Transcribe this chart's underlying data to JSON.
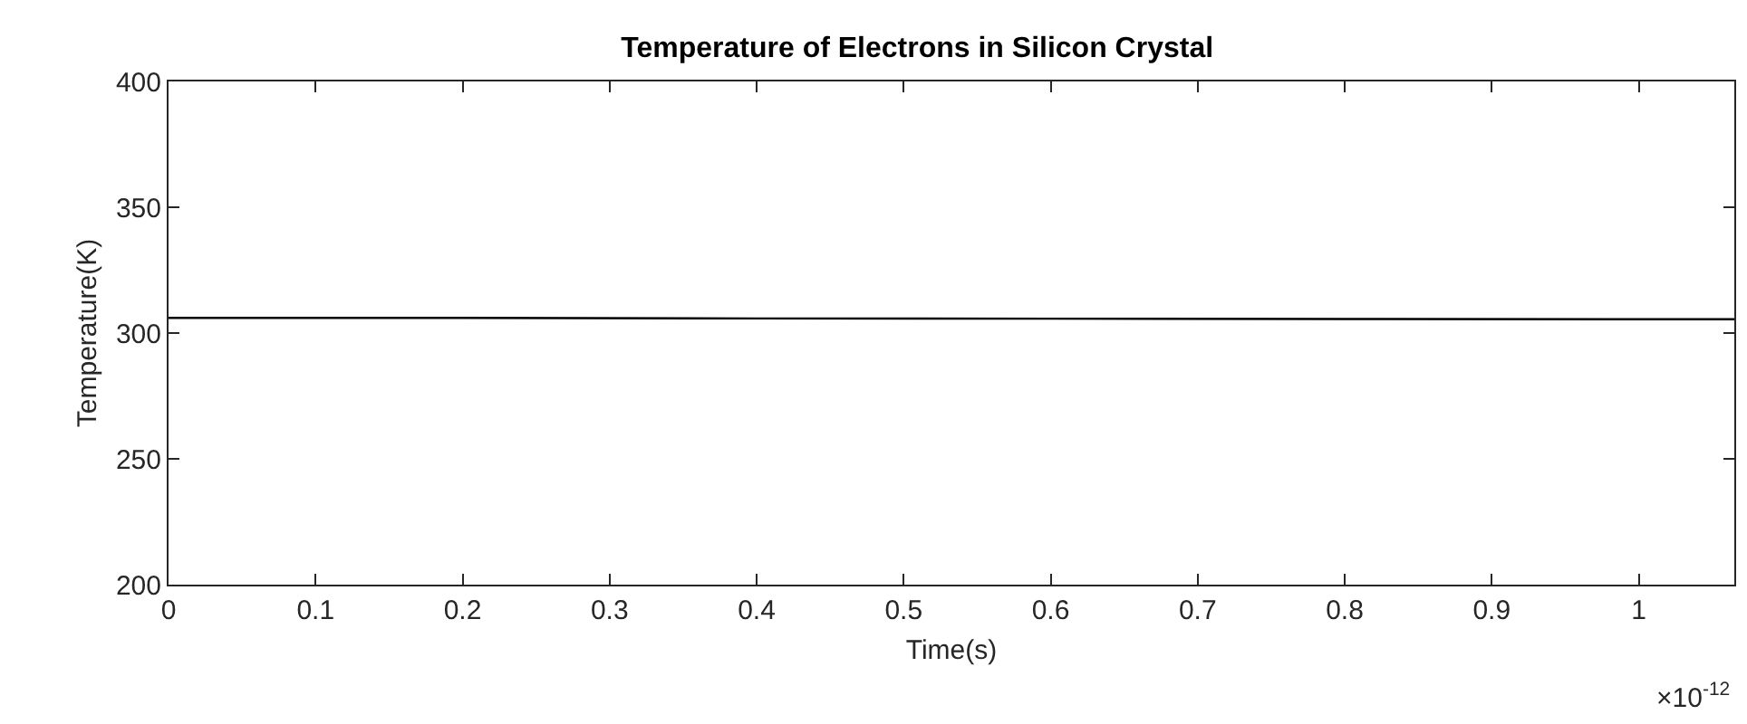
{
  "chart_data": {
    "type": "line",
    "title": "Temperature of Electrons in Silicon Crystal",
    "xlabel": "Time(s)",
    "ylabel": "Temperature(K)",
    "x": [
      0,
      0.2,
      0.4,
      0.6,
      0.8,
      1.0,
      1.065
    ],
    "series": [
      {
        "color": "#000000",
        "values": [
          306,
          306,
          305.8,
          305.7,
          305.6,
          305.5,
          305.5
        ]
      }
    ],
    "xlim": [
      0,
      1.065
    ],
    "xticks": [
      0,
      0.1,
      0.2,
      0.3,
      0.4,
      0.5,
      0.6,
      0.7,
      0.8,
      0.9,
      1
    ],
    "ylim": [
      200,
      400
    ],
    "yticks": [
      200,
      250,
      300,
      350,
      400
    ],
    "annotations": [
      "×10$^{-12}$"
    ],
    "grid": false,
    "marker": "none",
    "line_style": "solid"
  }
}
